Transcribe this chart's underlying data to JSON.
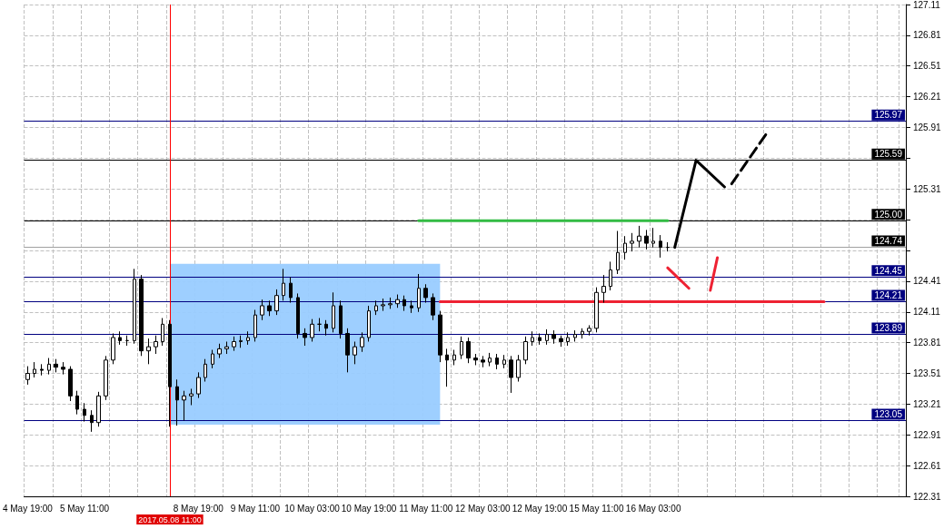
{
  "chart_data": {
    "type": "candlestick",
    "categories": [
      "4 May 19:00",
      null,
      null,
      null,
      null,
      null,
      null,
      null,
      "5 May 11:00",
      null,
      null,
      null,
      null,
      null,
      null,
      null,
      null,
      null,
      null,
      null,
      null,
      null,
      null,
      null,
      "8 May 19:00",
      null,
      null,
      null,
      null,
      null,
      null,
      null,
      "9 May 11:00",
      null,
      null,
      null,
      null,
      null,
      null,
      null,
      "10 May 03:00",
      null,
      null,
      null,
      null,
      null,
      null,
      null,
      "10 May 19:00",
      null,
      null,
      null,
      null,
      null,
      null,
      null,
      "11 May 11:00",
      null,
      null,
      null,
      null,
      null,
      null,
      null,
      "12 May 03:00",
      null,
      null,
      null,
      null,
      null,
      null,
      null,
      "12 May 19:00",
      null,
      null,
      null,
      null,
      null,
      null,
      null,
      "15 May 11:00",
      null,
      null,
      null,
      null,
      null,
      null,
      null,
      "16 May 03:00",
      null,
      null,
      null,
      null,
      null,
      null,
      null,
      null,
      null,
      null,
      null,
      null,
      null,
      null,
      null,
      null,
      null,
      null,
      null,
      null,
      null,
      null,
      null,
      null,
      null,
      null,
      null,
      null,
      null,
      null,
      null,
      null,
      null,
      null,
      null
    ],
    "ohlc": [
      [
        123.45,
        123.58,
        123.4,
        123.51
      ],
      [
        123.51,
        123.62,
        123.47,
        123.55
      ],
      [
        123.55,
        123.6,
        123.49,
        123.54
      ],
      [
        123.54,
        123.66,
        123.5,
        123.6
      ],
      [
        123.6,
        123.65,
        123.52,
        123.57
      ],
      [
        123.57,
        123.62,
        123.5,
        123.55
      ],
      [
        123.55,
        123.58,
        123.24,
        123.29
      ],
      [
        123.29,
        123.34,
        123.11,
        123.16
      ],
      [
        123.16,
        123.22,
        123.04,
        123.1
      ],
      [
        123.1,
        123.15,
        122.94,
        123.03
      ],
      [
        123.03,
        123.33,
        122.99,
        123.29
      ],
      [
        123.29,
        123.68,
        123.25,
        123.64
      ],
      [
        123.64,
        123.9,
        123.6,
        123.86
      ],
      [
        123.86,
        123.92,
        123.79,
        123.83
      ],
      [
        123.83,
        123.88,
        123.78,
        123.83
      ],
      [
        123.83,
        124.53,
        123.8,
        124.43
      ],
      [
        124.43,
        124.47,
        123.68,
        123.73
      ],
      [
        123.73,
        123.85,
        123.6,
        123.77
      ],
      [
        123.77,
        123.88,
        123.7,
        123.82
      ],
      [
        123.82,
        124.05,
        123.78,
        123.99
      ],
      [
        123.99,
        124.03,
        122.99,
        123.38
      ],
      [
        123.38,
        123.45,
        123.0,
        123.25
      ],
      [
        123.25,
        123.34,
        123.05,
        123.29
      ],
      [
        123.29,
        123.36,
        123.2,
        123.31
      ],
      [
        123.31,
        123.52,
        123.27,
        123.47
      ],
      [
        123.47,
        123.65,
        123.43,
        123.6
      ],
      [
        123.6,
        123.74,
        123.56,
        123.7
      ],
      [
        123.7,
        123.8,
        123.66,
        123.75
      ],
      [
        123.75,
        123.82,
        123.7,
        123.77
      ],
      [
        123.77,
        123.87,
        123.73,
        123.82
      ],
      [
        123.82,
        123.88,
        123.76,
        123.83
      ],
      [
        123.83,
        123.92,
        123.79,
        123.86
      ],
      [
        123.86,
        124.13,
        123.82,
        124.08
      ],
      [
        124.08,
        124.23,
        124.03,
        124.17
      ],
      [
        124.17,
        124.22,
        124.07,
        124.12
      ],
      [
        124.12,
        124.33,
        124.08,
        124.27
      ],
      [
        124.27,
        124.53,
        124.22,
        124.39
      ],
      [
        124.39,
        124.45,
        124.2,
        124.25
      ],
      [
        124.25,
        124.29,
        123.85,
        123.9
      ],
      [
        123.9,
        123.95,
        123.78,
        123.86
      ],
      [
        123.86,
        124.04,
        123.82,
        123.99
      ],
      [
        123.99,
        124.05,
        123.92,
        123.99
      ],
      [
        123.99,
        124.03,
        123.88,
        123.95
      ],
      [
        123.95,
        124.3,
        123.91,
        124.17
      ],
      [
        124.17,
        124.22,
        123.85,
        123.9
      ],
      [
        123.9,
        123.95,
        123.52,
        123.69
      ],
      [
        123.69,
        123.82,
        123.6,
        123.77
      ],
      [
        123.77,
        123.91,
        123.72,
        123.86
      ],
      [
        123.86,
        124.17,
        123.82,
        124.12
      ],
      [
        124.12,
        124.22,
        124.08,
        124.17
      ],
      [
        124.17,
        124.24,
        124.12,
        124.18
      ],
      [
        124.18,
        124.25,
        124.14,
        124.19
      ],
      [
        124.19,
        124.28,
        124.15,
        124.23
      ],
      [
        124.23,
        124.27,
        124.12,
        124.17
      ],
      [
        124.17,
        124.22,
        124.1,
        124.15
      ],
      [
        124.15,
        124.48,
        124.11,
        124.34
      ],
      [
        124.34,
        124.38,
        124.2,
        124.25
      ],
      [
        124.25,
        124.29,
        124.03,
        124.08
      ],
      [
        124.08,
        124.12,
        123.62,
        123.69
      ],
      [
        123.69,
        123.75,
        123.38,
        123.64
      ],
      [
        123.64,
        123.74,
        123.59,
        123.69
      ],
      [
        123.69,
        123.87,
        123.65,
        123.82
      ],
      [
        123.82,
        123.86,
        123.61,
        123.66
      ],
      [
        123.66,
        123.7,
        123.59,
        123.64
      ],
      [
        123.64,
        123.68,
        123.57,
        123.62
      ],
      [
        123.62,
        123.71,
        123.58,
        123.66
      ],
      [
        123.66,
        123.7,
        123.55,
        123.6
      ],
      [
        123.6,
        123.69,
        123.56,
        123.64
      ],
      [
        123.64,
        123.68,
        123.32,
        123.47
      ],
      [
        123.47,
        123.69,
        123.43,
        123.64
      ],
      [
        123.64,
        123.87,
        123.6,
        123.82
      ],
      [
        123.82,
        123.92,
        123.78,
        123.86
      ],
      [
        123.86,
        123.9,
        123.79,
        123.83
      ],
      [
        123.83,
        123.94,
        123.79,
        123.89
      ],
      [
        123.89,
        123.93,
        123.8,
        123.85
      ],
      [
        123.85,
        123.88,
        123.77,
        123.82
      ],
      [
        123.82,
        123.91,
        123.78,
        123.86
      ],
      [
        123.86,
        123.93,
        123.82,
        123.89
      ],
      [
        123.89,
        123.95,
        123.85,
        123.92
      ],
      [
        123.92,
        123.98,
        123.88,
        123.95
      ],
      [
        123.95,
        124.35,
        123.91,
        124.3
      ],
      [
        124.3,
        124.47,
        124.2,
        124.36
      ],
      [
        124.36,
        124.6,
        124.32,
        124.52
      ],
      [
        124.52,
        124.9,
        124.48,
        124.69
      ],
      [
        124.69,
        124.85,
        124.62,
        124.78
      ],
      [
        124.78,
        124.88,
        124.7,
        124.8
      ],
      [
        124.8,
        124.95,
        124.74,
        124.85
      ],
      [
        124.85,
        124.91,
        124.72,
        124.78
      ],
      [
        124.78,
        124.93,
        124.74,
        124.8
      ],
      [
        124.8,
        124.86,
        124.64,
        124.74
      ],
      [
        124.74,
        124.79,
        124.7,
        124.74
      ],
      null,
      null,
      null,
      null,
      null,
      null,
      null,
      null,
      null,
      null,
      null,
      null,
      null,
      null,
      null,
      null,
      null,
      null,
      null,
      null,
      null,
      null,
      null,
      null,
      null,
      null,
      null,
      null,
      null,
      null,
      null,
      null,
      null
    ],
    "series": [
      {
        "type": "line",
        "color": "#33bb44",
        "line_style": "solid",
        "values": [
          null,
          null,
          null,
          null,
          null,
          null,
          null,
          null,
          null,
          null,
          null,
          null,
          null,
          null,
          null,
          null,
          null,
          null,
          null,
          null,
          null,
          null,
          null,
          null,
          null,
          null,
          null,
          null,
          null,
          null,
          null,
          null,
          null,
          null,
          null,
          null,
          null,
          null,
          null,
          null,
          null,
          null,
          null,
          null,
          null,
          null,
          null,
          null,
          null,
          null,
          null,
          null,
          null,
          null,
          null,
          125.0,
          125.0,
          125.0,
          125.0,
          125.0,
          125.0,
          125.0,
          125.0,
          125.0,
          125.0,
          125.0,
          125.0,
          125.0,
          125.0,
          125.0,
          125.0,
          125.0,
          125.0,
          125.0,
          125.0,
          125.0,
          125.0,
          125.0,
          125.0,
          125.0,
          125.0,
          125.0,
          125.0,
          125.0,
          125.0,
          125.0,
          125.0,
          125.0,
          125.0,
          125.0,
          125.0,
          null,
          null,
          null,
          null,
          null,
          null,
          null,
          null,
          null,
          null,
          null,
          null,
          null,
          null,
          null,
          null,
          null,
          null,
          null,
          null,
          null,
          null,
          null,
          null,
          null,
          null,
          null,
          null,
          null,
          null,
          null,
          null,
          null
        ]
      },
      {
        "type": "line",
        "color": "#ee2233",
        "line_style": "solid",
        "values": [
          null,
          null,
          null,
          null,
          null,
          null,
          null,
          null,
          null,
          null,
          null,
          null,
          null,
          null,
          null,
          null,
          null,
          null,
          null,
          null,
          null,
          null,
          null,
          null,
          null,
          null,
          null,
          null,
          null,
          null,
          null,
          null,
          null,
          null,
          null,
          null,
          null,
          null,
          null,
          null,
          null,
          null,
          null,
          null,
          null,
          null,
          null,
          null,
          null,
          null,
          null,
          null,
          null,
          null,
          null,
          null,
          null,
          null,
          124.21,
          124.21,
          124.21,
          124.21,
          124.21,
          124.21,
          124.21,
          124.21,
          124.21,
          124.21,
          124.21,
          124.21,
          124.21,
          124.21,
          124.21,
          124.21,
          124.21,
          124.21,
          124.21,
          124.21,
          124.21,
          124.21,
          124.21,
          124.21,
          124.21,
          124.21,
          124.21,
          124.21,
          124.21,
          124.21,
          124.21,
          124.21,
          124.21,
          124.21,
          124.21,
          124.21,
          124.21,
          124.21,
          124.21,
          124.21,
          124.21,
          124.21,
          124.21,
          124.21,
          124.21,
          124.21,
          124.21,
          124.21,
          124.21,
          124.21,
          124.21,
          124.21,
          124.21,
          124.21,
          124.21,
          null,
          null,
          null,
          null,
          null,
          null,
          null,
          null,
          null,
          null,
          null
        ]
      },
      {
        "type": "line",
        "color": "#000000",
        "line_style": "solid",
        "values": [
          null,
          null,
          null,
          null,
          null,
          null,
          null,
          null,
          null,
          null,
          null,
          null,
          null,
          null,
          null,
          null,
          null,
          null,
          null,
          null,
          null,
          null,
          null,
          null,
          null,
          null,
          null,
          null,
          null,
          null,
          null,
          null,
          null,
          null,
          null,
          null,
          null,
          null,
          null,
          null,
          null,
          null,
          null,
          null,
          null,
          null,
          null,
          null,
          null,
          null,
          null,
          null,
          null,
          null,
          null,
          null,
          null,
          null,
          null,
          null,
          null,
          null,
          null,
          null,
          null,
          null,
          null,
          null,
          null,
          null,
          null,
          null,
          null,
          null,
          null,
          null,
          null,
          null,
          null,
          null,
          null,
          null,
          null,
          null,
          null,
          null,
          null,
          null,
          null,
          null,
          null,
          124.74,
          null,
          null,
          125.59,
          null,
          null,
          null,
          125.33,
          null,
          null,
          null,
          null,
          null,
          null,
          null,
          null,
          null,
          null,
          null,
          null,
          null,
          null,
          null,
          null,
          null,
          null,
          null,
          null,
          null,
          null,
          null,
          null,
          null
        ]
      },
      {
        "type": "line",
        "color": "#000000",
        "line_style": "dashed",
        "values": [
          null,
          null,
          null,
          null,
          null,
          null,
          null,
          null,
          null,
          null,
          null,
          null,
          null,
          null,
          null,
          null,
          null,
          null,
          null,
          null,
          null,
          null,
          null,
          null,
          null,
          null,
          null,
          null,
          null,
          null,
          null,
          null,
          null,
          null,
          null,
          null,
          null,
          null,
          null,
          null,
          null,
          null,
          null,
          null,
          null,
          null,
          null,
          null,
          null,
          null,
          null,
          null,
          null,
          null,
          null,
          null,
          null,
          null,
          null,
          null,
          null,
          null,
          null,
          null,
          null,
          null,
          null,
          null,
          null,
          null,
          null,
          null,
          null,
          null,
          null,
          null,
          null,
          null,
          null,
          null,
          null,
          null,
          null,
          null,
          null,
          null,
          null,
          null,
          null,
          null,
          null,
          null,
          null,
          null,
          null,
          null,
          null,
          null,
          null,
          125.36,
          null,
          null,
          null,
          null,
          125.86,
          null,
          null,
          null,
          null,
          null,
          null,
          null,
          null,
          null,
          null,
          null,
          null,
          null,
          null,
          null,
          null,
          null,
          null,
          null
        ]
      },
      {
        "type": "line",
        "color": "#ee2233",
        "line_style": "solid",
        "values": [
          null,
          null,
          null,
          null,
          null,
          null,
          null,
          null,
          null,
          null,
          null,
          null,
          null,
          null,
          null,
          null,
          null,
          null,
          null,
          null,
          null,
          null,
          null,
          null,
          null,
          null,
          null,
          null,
          null,
          null,
          null,
          null,
          null,
          null,
          null,
          null,
          null,
          null,
          null,
          null,
          null,
          null,
          null,
          null,
          null,
          null,
          null,
          null,
          null,
          null,
          null,
          null,
          null,
          null,
          null,
          null,
          null,
          null,
          null,
          null,
          null,
          null,
          null,
          null,
          null,
          null,
          null,
          null,
          null,
          null,
          null,
          null,
          null,
          null,
          null,
          null,
          null,
          null,
          null,
          null,
          null,
          null,
          null,
          null,
          null,
          null,
          null,
          null,
          null,
          null,
          124.54,
          null,
          null,
          124.34,
          null,
          null,
          null,
          null,
          null,
          null,
          null,
          null,
          null,
          null,
          null,
          null,
          null,
          null,
          null,
          null,
          null,
          null,
          null,
          null,
          null,
          null,
          null,
          null,
          null,
          null,
          null,
          null,
          null,
          null
        ]
      },
      {
        "type": "line",
        "color": "#ee2233",
        "line_style": "solid",
        "values": [
          null,
          null,
          null,
          null,
          null,
          null,
          null,
          null,
          null,
          null,
          null,
          null,
          null,
          null,
          null,
          null,
          null,
          null,
          null,
          null,
          null,
          null,
          null,
          null,
          null,
          null,
          null,
          null,
          null,
          null,
          null,
          null,
          null,
          null,
          null,
          null,
          null,
          null,
          null,
          null,
          null,
          null,
          null,
          null,
          null,
          null,
          null,
          null,
          null,
          null,
          null,
          null,
          null,
          null,
          null,
          null,
          null,
          null,
          null,
          null,
          null,
          null,
          null,
          null,
          null,
          null,
          null,
          null,
          null,
          null,
          null,
          null,
          null,
          null,
          null,
          null,
          null,
          null,
          null,
          null,
          null,
          null,
          null,
          null,
          null,
          null,
          null,
          null,
          null,
          null,
          null,
          null,
          null,
          null,
          null,
          null,
          124.32,
          124.64,
          null,
          null,
          null,
          null,
          null,
          null,
          null,
          null,
          null,
          null,
          null,
          null,
          null,
          null,
          null,
          null,
          null,
          null,
          null,
          null,
          null,
          null,
          null,
          null,
          null,
          null
        ]
      }
    ],
    "ylim": [
      122.31,
      127.11
    ],
    "yticks": [
      122.31,
      122.61,
      122.91,
      123.21,
      123.51,
      123.81,
      124.11,
      124.41,
      {
        "value": 124.71,
        "label": null
      },
      {
        "value": 125.01,
        "label": null
      },
      125.31,
      {
        "value": 125.61,
        "label": null
      },
      125.91,
      126.21,
      126.51,
      126.81,
      127.11
    ],
    "ref_lines": [
      {
        "axis": "y",
        "value": 125.97,
        "label": "125.97",
        "color": "#000080"
      },
      {
        "axis": "y",
        "value": 125.59,
        "label": "125.59",
        "color": "#000000"
      },
      {
        "axis": "y",
        "value": 125.0,
        "label": "125.00",
        "color": "#000000"
      },
      {
        "axis": "y",
        "value": 124.74,
        "label": "124.74",
        "color": "#a0a0a0"
      },
      {
        "axis": "y",
        "value": 124.45,
        "label": "124.45",
        "color": "#000080"
      },
      {
        "axis": "y",
        "value": 124.21,
        "label": "124.21",
        "color": "#000080"
      },
      {
        "axis": "y",
        "value": 123.89,
        "label": "123.89",
        "color": "#000080"
      },
      {
        "axis": "y",
        "value": 123.05,
        "label": "123.05",
        "color": "#000080"
      }
    ],
    "bands": [
      {
        "axis": "y",
        "from": 123.01,
        "to": 124.58,
        "color": "#99ccff"
      }
    ],
    "annotations": [
      "2017.05.08 11:00"
    ],
    "grid": true,
    "marker": "none"
  }
}
